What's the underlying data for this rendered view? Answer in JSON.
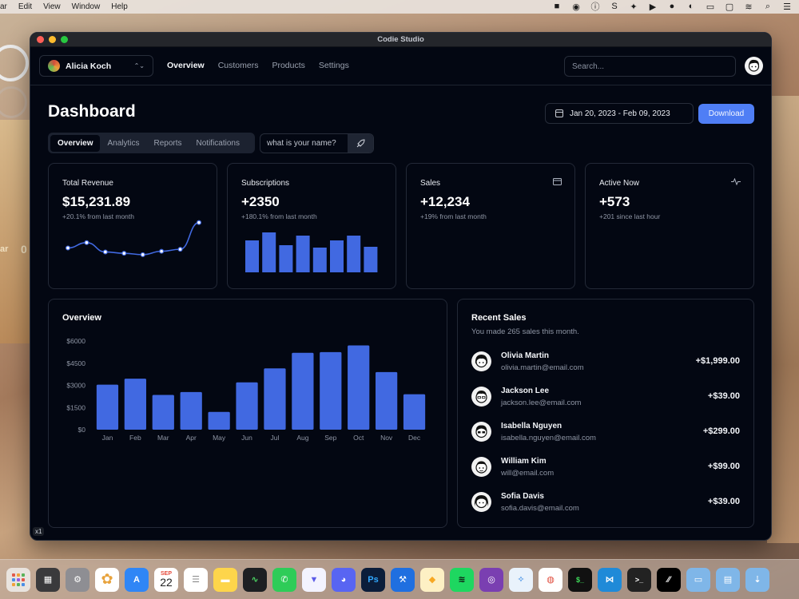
{
  "menubar": {
    "items": [
      "ar",
      "Edit",
      "View",
      "Window",
      "Help"
    ]
  },
  "desktop": {
    "left_text": "ar",
    "left_num": "0"
  },
  "window": {
    "title": "Codie Studio"
  },
  "team_switcher": {
    "name": "Alicia Koch"
  },
  "nav": {
    "links": [
      "Overview",
      "Customers",
      "Products",
      "Settings"
    ],
    "active": "Overview"
  },
  "search": {
    "placeholder": "Search..."
  },
  "header": {
    "title": "Dashboard",
    "date_range": "Jan 20, 2023 - Feb 09, 2023",
    "download_label": "Download"
  },
  "tabs": {
    "items": [
      "Overview",
      "Analytics",
      "Reports",
      "Notifications"
    ],
    "active": "Overview"
  },
  "name_input": {
    "placeholder": "what is your name?"
  },
  "stats": [
    {
      "title": "Total Revenue",
      "value": "$15,231.89",
      "sub": "+20.1% from last month",
      "icon": ""
    },
    {
      "title": "Subscriptions",
      "value": "+2350",
      "sub": "+180.1% from last month",
      "icon": ""
    },
    {
      "title": "Sales",
      "value": "+12,234",
      "sub": "+19% from last month",
      "icon": "credit-card-icon"
    },
    {
      "title": "Active Now",
      "value": "+573",
      "sub": "+201 since last hour",
      "icon": "activity-icon"
    }
  ],
  "overview": {
    "title": "Overview"
  },
  "recent_sales": {
    "title": "Recent Sales",
    "subtitle": "You made 265 sales this month.",
    "rows": [
      {
        "name": "Olivia Martin",
        "email": "olivia.martin@email.com",
        "amount": "+$1,999.00"
      },
      {
        "name": "Jackson Lee",
        "email": "jackson.lee@email.com",
        "amount": "+$39.00"
      },
      {
        "name": "Isabella Nguyen",
        "email": "isabella.nguyen@email.com",
        "amount": "+$299.00"
      },
      {
        "name": "William Kim",
        "email": "will@email.com",
        "amount": "+$99.00"
      },
      {
        "name": "Sofia Davis",
        "email": "sofia.davis@email.com",
        "amount": "+$39.00"
      }
    ]
  },
  "zoom_badge": "x1",
  "chart_data": [
    {
      "type": "line",
      "title": "Total Revenue sparkline",
      "values": [
        40,
        48,
        34,
        32,
        30,
        35,
        38,
        78
      ]
    },
    {
      "type": "bar",
      "title": "Subscriptions sparkline",
      "values": [
        40,
        50,
        34,
        46,
        31,
        40,
        46,
        32
      ]
    },
    {
      "type": "bar",
      "title": "Overview",
      "categories": [
        "Jan",
        "Feb",
        "Mar",
        "Apr",
        "May",
        "Jun",
        "Jul",
        "Aug",
        "Sep",
        "Oct",
        "Nov",
        "Dec"
      ],
      "values": [
        3050,
        3450,
        2350,
        2550,
        1200,
        3200,
        4150,
        5200,
        5250,
        5700,
        3900,
        2400
      ],
      "yticks": [
        "$0",
        "$1500",
        "$3000",
        "$4500",
        "$6000"
      ],
      "ylim": [
        0,
        6000
      ],
      "color": "#4169e1"
    }
  ],
  "colors": {
    "accent": "#4f7ef5",
    "bar": "#4169e1",
    "background": "#030712"
  },
  "dock_apps": [
    "launchpad",
    "calculator",
    "settings",
    "photos",
    "app-store",
    "calendar",
    "reminders",
    "notes",
    "activity-monitor",
    "whatsapp",
    "vpn",
    "discord",
    "Ps",
    "xcode",
    "sketch",
    "spotify",
    "github",
    "safari",
    "chrome",
    "terminal",
    "vscode",
    "terminal-2",
    "linear",
    "folder",
    "documents",
    "downloads"
  ],
  "dock_calendar": {
    "month": "SEP",
    "day": "22"
  }
}
